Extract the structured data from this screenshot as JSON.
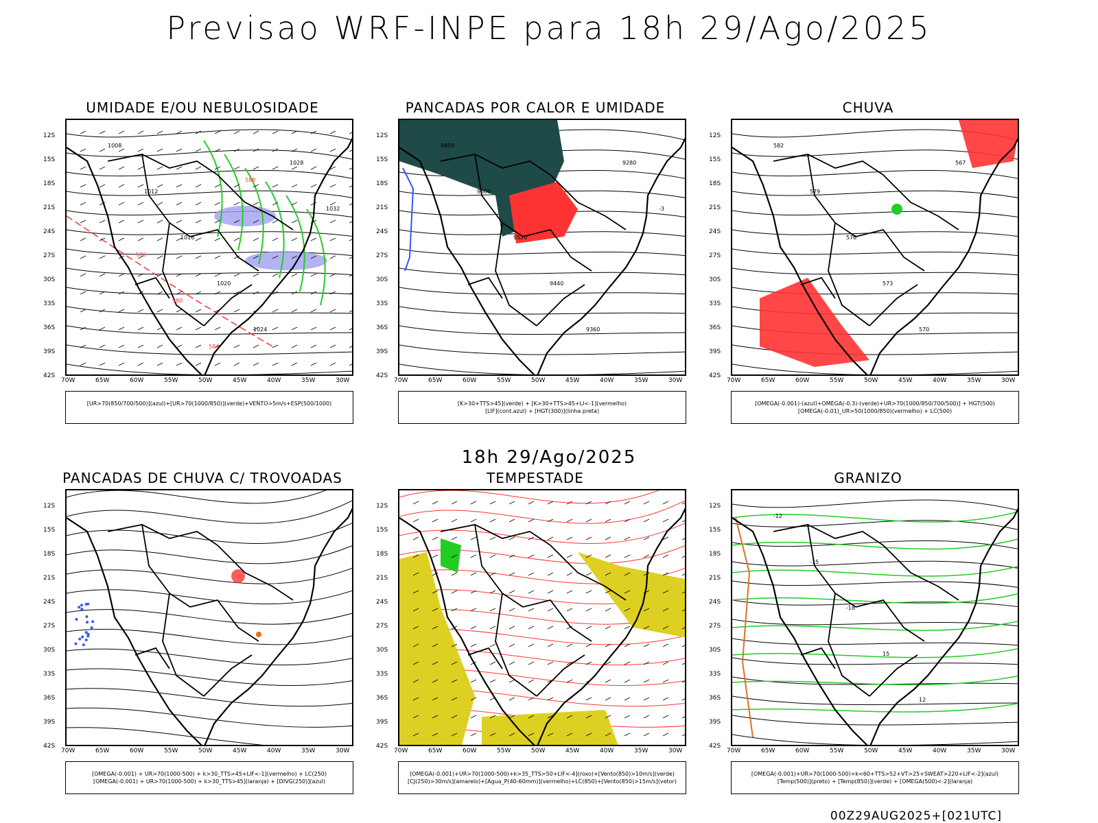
{
  "title": "Previsao WRF-INPE  para 18h 29/Ago/2025",
  "mid_title": "18h 29/Ago/2025",
  "footer": "00Z29AUG2025+[021UTC]",
  "lat_labels": [
    "12S",
    "15S",
    "18S",
    "21S",
    "24S",
    "27S",
    "30S",
    "33S",
    "36S",
    "39S",
    "42S"
  ],
  "lon_labels": [
    "70W",
    "65W",
    "60W",
    "55W",
    "50W",
    "45W",
    "40W",
    "35W",
    "30W"
  ],
  "panels": [
    {
      "title": "UMIDADE E/OU NEBULOSIDADE",
      "legend": [
        "[UR>70(850/700/500)](azul)+[UR>70(1000/850)](verde)+VENTO>5m/s+ESP(500/1000)"
      ],
      "contour_labels": [
        "1008",
        "1012",
        "1016",
        "1020",
        "1024",
        "1028",
        "1032",
        "576",
        "580",
        "584",
        "588"
      ]
    },
    {
      "title": "PANCADAS POR CALOR E UMIDADE",
      "legend": [
        "[K>30+TTS>45](verde) + [K>30+TTS>45+LI<-1](vermelho)",
        "[LIF](cont.azul) + [HGT(300)](linha preta)"
      ],
      "contour_labels": [
        "9800",
        "9600",
        "9520",
        "9440",
        "9360",
        "9280",
        "-3"
      ]
    },
    {
      "title": "CHUVA",
      "legend": [
        "[OMEGA(-0.001)-(azul)+OMEGA(-0.3)-(verde)+UR>70(1000/850/700/500)] + HGT(500)",
        "[OMEGA(-0.01)_UR>50(1000/850)(vermelho) + LC(500)"
      ],
      "contour_labels": [
        "582",
        "579",
        "576",
        "573",
        "570",
        "567"
      ]
    },
    {
      "title": "PANCADAS DE CHUVA C/ TROVOADAS",
      "legend": [
        "[OMEGA(-0.001) + UR>70(1000-500) + k>30_TTS>45+LIF<-1](vermelho) + LC(250)",
        "[OMEGA(-0.001) + UR>70(1000-500) + k>30_TTS>45](laranja) + [DIVG(250)](azul)"
      ],
      "contour_labels": []
    },
    {
      "title": "TEMPESTADE",
      "legend": [
        "[OMEGA(-0.001)+UR>70(1000-500)+k>35_TTS>50+LIF<-4](roxo)+[Vento(850)>10m/s](verde)",
        "[CJ(250)>30m/s](amarelo)+[Agua_P(40-60mm)](vermelho)+LC(850)+[Vento(850)>15m/s](vetor)"
      ],
      "contour_labels": []
    },
    {
      "title": "GRANIZO",
      "legend": [
        "[OMEGA(-0.001)+UR>70(1000-500)+k<60+TTS>52+VT>25+SWEAT>220+LIF<-2](azul)",
        "[Temp(500)](preto) + [Temp(850)](verde) + [OMEGA(500)<-2](laranja)"
      ],
      "contour_labels": [
        "-12",
        "-15",
        "-18",
        "15",
        "12"
      ]
    }
  ],
  "colors": {
    "red": "#ff3333",
    "green": "#22cc22",
    "blue": "#3355ff",
    "lavender": "#a0a0f0",
    "darkteal": "#1e4a48",
    "yellow": "#ddd022",
    "orange": "#e07020"
  }
}
